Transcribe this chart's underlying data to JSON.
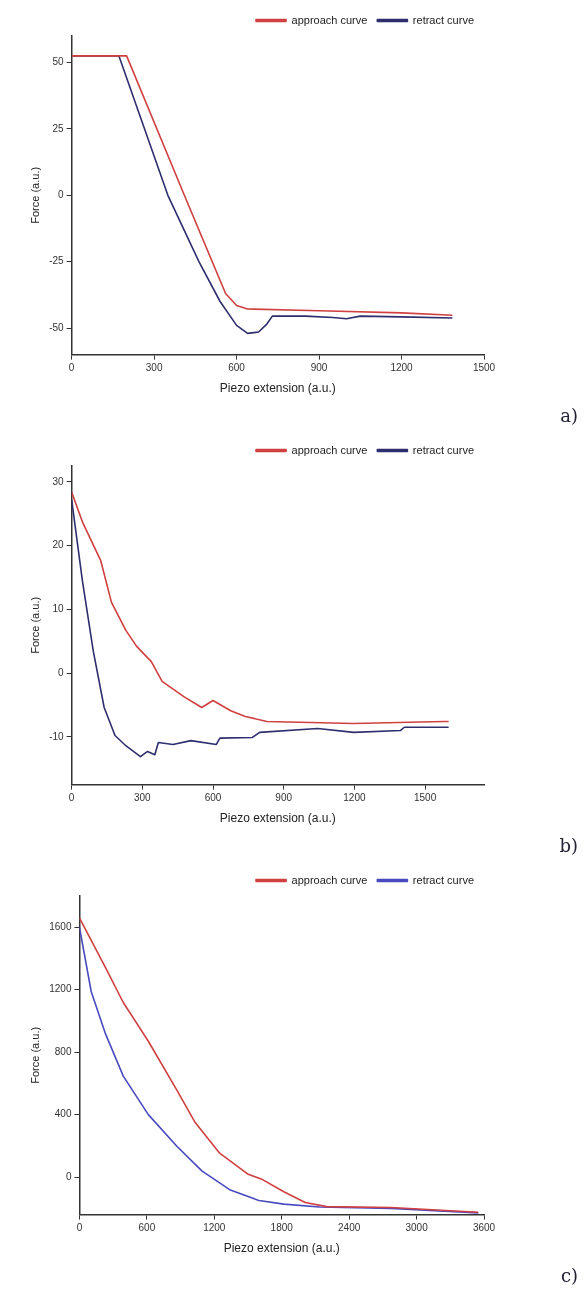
{
  "chart_data": [
    {
      "type": "line",
      "xlabel": "Piezo extension (a.u.)",
      "ylabel": "Force (a.u.)",
      "xlim": [
        0,
        1500
      ],
      "xticks": [
        0,
        300,
        600,
        900,
        1200,
        1500
      ],
      "ylim": [
        -60,
        60
      ],
      "yticks": [
        -50,
        -25,
        0,
        25,
        50
      ],
      "grid": false,
      "legend": "top right",
      "marker": "none",
      "line_style": "solid",
      "annotations": [
        "a)"
      ],
      "series": [
        {
          "name": "approach curve",
          "color": "#d04040",
          "x": [
            0,
            200,
            410,
            560,
            600,
            640,
            900,
            1200,
            1385
          ],
          "values": [
            52.5,
            52.5,
            0,
            -37,
            -41.5,
            -42.8,
            -43.5,
            -44.3,
            -45.2
          ]
        },
        {
          "name": "retract curve",
          "color": "#2e2e6e",
          "x": [
            0,
            172,
            350,
            463,
            540,
            600,
            640,
            680,
            710,
            730,
            850,
            950,
            1000,
            1050,
            1200,
            1385
          ],
          "values": [
            52.5,
            52.5,
            0,
            -25,
            -40,
            -49,
            -52,
            -51.5,
            -48.5,
            -45.5,
            -45.5,
            -46,
            -46.5,
            -45.5,
            -45.8,
            -46.2
          ]
        }
      ]
    },
    {
      "type": "line",
      "xlabel": "Piezo extension (a.u.)",
      "ylabel": "Force (a.u.)",
      "xlim": [
        0,
        1750
      ],
      "xticks": [
        0,
        300,
        600,
        900,
        1200,
        1500
      ],
      "ylim": [
        -17.5,
        32.5
      ],
      "yticks": [
        -10,
        0,
        10,
        20,
        30
      ],
      "grid": false,
      "legend": "top right",
      "marker": "none",
      "line_style": "solid",
      "annotations": [
        "b)"
      ],
      "series": [
        {
          "name": "approach curve",
          "color": "#d04040",
          "x": [
            0,
            46,
            123,
            169,
            230,
            276,
            338,
            384,
            476,
            552,
            600,
            675,
            737,
            829,
            1197,
            1580,
            1600
          ],
          "values": [
            28.4,
            23.7,
            17.7,
            11.1,
            6.7,
            4.2,
            1.8,
            -1.3,
            -3.7,
            -5.4,
            -4.3,
            -5.9,
            -6.8,
            -7.6,
            -7.9,
            -7.6,
            -7.6
          ]
        },
        {
          "name": "retract curve",
          "color": "#2e2e6e",
          "x": [
            0,
            46,
            92,
            138,
            184,
            230,
            292,
            322,
            353,
            368,
            430,
            506,
            614,
            629,
            767,
            798,
            1044,
            1197,
            1396,
            1412,
            1600
          ],
          "values": [
            27.2,
            14.4,
            3.4,
            -5.4,
            -9.8,
            -11.4,
            -13.1,
            -12.3,
            -12.8,
            -10.9,
            -11.2,
            -10.6,
            -11.2,
            -10.2,
            -10.1,
            -9.3,
            -8.7,
            -9.3,
            -9,
            -8.5,
            -8.5
          ]
        }
      ]
    },
    {
      "type": "line",
      "xlabel": "Piezo extension (a.u.)",
      "ylabel": "Force (a.u.)",
      "xlim": [
        0,
        3600
      ],
      "xticks": [
        0,
        600,
        1200,
        1800,
        2400,
        3000,
        3600
      ],
      "ylim": [
        -240,
        1800
      ],
      "yticks": [
        0,
        400,
        800,
        1200,
        1600
      ],
      "grid": false,
      "legend": "top right",
      "marker": "none",
      "line_style": "solid",
      "annotations": [
        "c)"
      ],
      "series": [
        {
          "name": "approach curve",
          "color": "#d04040",
          "x": [
            0,
            232,
            390,
            613,
            867,
            1025,
            1248,
            1502,
            1629,
            1819,
            2009,
            2200,
            2771,
            3549
          ],
          "values": [
            1660,
            1342,
            1118,
            870,
            557,
            355,
            153,
            18,
            -16,
            -94,
            -162,
            -189,
            -195,
            -225
          ]
        },
        {
          "name": "retract curve",
          "color": "#4a4ac0",
          "x": [
            0,
            105,
            232,
            390,
            613,
            867,
            1089,
            1343,
            1597,
            1819,
            2136,
            2771,
            3549
          ],
          "values": [
            1600,
            1187,
            917,
            647,
            400,
            198,
            40,
            -83,
            -150,
            -173,
            -191,
            -200,
            -229
          ]
        }
      ]
    }
  ]
}
